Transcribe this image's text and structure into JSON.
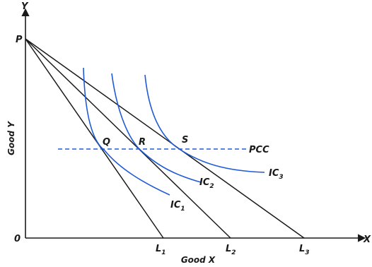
{
  "axes": {
    "y_letter": "Y",
    "x_letter": "X",
    "origin": "0",
    "y_title": "Good Y",
    "x_title": "Good X"
  },
  "points": {
    "p": "P",
    "q": "Q",
    "r": "R",
    "s": "S"
  },
  "budget_lines": [
    {
      "label": "L",
      "sub": "1"
    },
    {
      "label": "L",
      "sub": "2"
    },
    {
      "label": "L",
      "sub": "3"
    }
  ],
  "indifference_curves": [
    {
      "label": "IC",
      "sub": "1"
    },
    {
      "label": "IC",
      "sub": "2"
    },
    {
      "label": "IC",
      "sub": "3"
    }
  ],
  "pcc_label": "PCC",
  "colors": {
    "curves": "#1f5bd6",
    "lines": "#1a1a1a"
  }
}
